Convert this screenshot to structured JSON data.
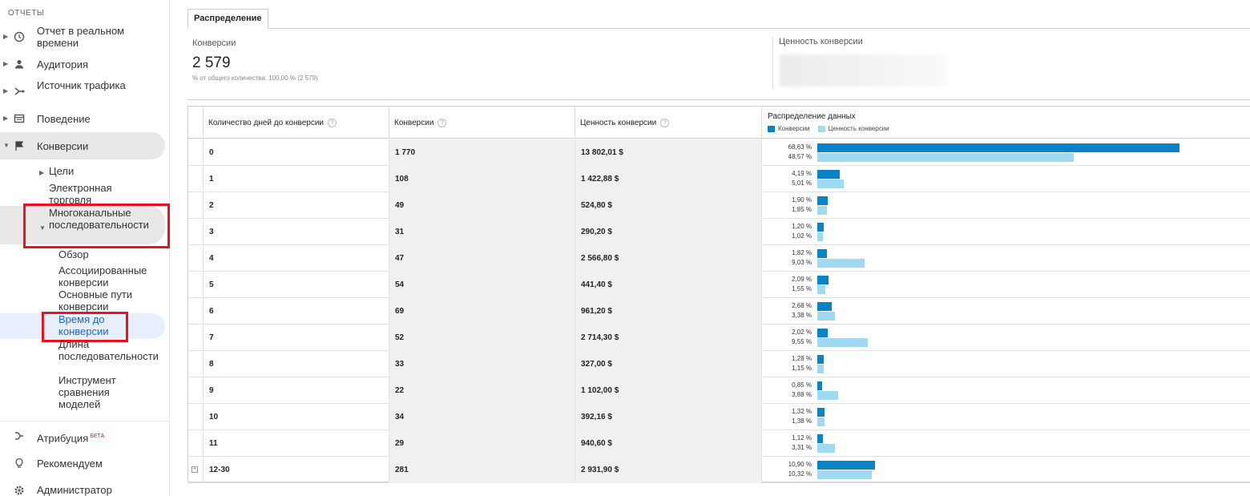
{
  "sidebar": {
    "section_title": "ОТЧЕТЫ",
    "top_items": [
      {
        "label": "Отчет в реальном времени",
        "icon": "clock-icon"
      },
      {
        "label": "Аудитория",
        "icon": "person-icon"
      },
      {
        "label": "Источник трафика",
        "icon": "source-icon"
      },
      {
        "label": "Поведение",
        "icon": "behavior-icon"
      },
      {
        "label": "Конверсии",
        "icon": "flag-icon"
      }
    ],
    "conversion_sub": [
      "Цели",
      "Электронная торговля",
      "Многоканальные последовательности"
    ],
    "mcf_sub": [
      "Обзор",
      "Ассоциированные конверсии",
      "Основные пути конверсии",
      "Время до конверсии",
      "Длина последовательности",
      "Инструмент сравнения моделей"
    ],
    "bottom_items": [
      {
        "label": "Атрибуция",
        "badge": "БЕТА",
        "icon": "attribution-icon"
      },
      {
        "label": "Рекомендуем",
        "icon": "lightbulb-icon"
      },
      {
        "label": "Администратор",
        "icon": "gear-icon"
      }
    ]
  },
  "tab": "Распределение",
  "summary": {
    "label": "Конверсии",
    "value": "2 579",
    "sub": "% от общего количества: 100,00 % (2 579)",
    "value_label": "Ценность конверсии"
  },
  "table": {
    "headers": [
      "Количество дней до конверсии",
      "Конверсии",
      "Ценность конверсии"
    ],
    "dist_title": "Распределение данных",
    "legend": [
      {
        "name": "Конверсии",
        "color": "#0a82c8"
      },
      {
        "name": "Ценность конверсии",
        "color": "#9fdaf2"
      }
    ],
    "rows": [
      {
        "days": "0",
        "conv": "1 770",
        "value": "13 802,01 $",
        "pc": "68,63 %",
        "pv": "48,57 %",
        "fc": 68.63,
        "fv": 48.57
      },
      {
        "days": "1",
        "conv": "108",
        "value": "1 422,88 $",
        "pc": "4,19 %",
        "pv": "5,01 %",
        "fc": 4.19,
        "fv": 5.01
      },
      {
        "days": "2",
        "conv": "49",
        "value": "524,80 $",
        "pc": "1,90 %",
        "pv": "1,85 %",
        "fc": 1.9,
        "fv": 1.85
      },
      {
        "days": "3",
        "conv": "31",
        "value": "290,20 $",
        "pc": "1,20 %",
        "pv": "1,02 %",
        "fc": 1.2,
        "fv": 1.02
      },
      {
        "days": "4",
        "conv": "47",
        "value": "2 566,80 $",
        "pc": "1,82 %",
        "pv": "9,03 %",
        "fc": 1.82,
        "fv": 9.03
      },
      {
        "days": "5",
        "conv": "54",
        "value": "441,40 $",
        "pc": "2,09 %",
        "pv": "1,55 %",
        "fc": 2.09,
        "fv": 1.55
      },
      {
        "days": "6",
        "conv": "69",
        "value": "961,20 $",
        "pc": "2,68 %",
        "pv": "3,38 %",
        "fc": 2.68,
        "fv": 3.38
      },
      {
        "days": "7",
        "conv": "52",
        "value": "2 714,30 $",
        "pc": "2,02 %",
        "pv": "9,55 %",
        "fc": 2.02,
        "fv": 9.55
      },
      {
        "days": "8",
        "conv": "33",
        "value": "327,00 $",
        "pc": "1,28 %",
        "pv": "1,15 %",
        "fc": 1.28,
        "fv": 1.15
      },
      {
        "days": "9",
        "conv": "22",
        "value": "1 102,00 $",
        "pc": "0,85 %",
        "pv": "3,88 %",
        "fc": 0.85,
        "fv": 3.88
      },
      {
        "days": "10",
        "conv": "34",
        "value": "392,16 $",
        "pc": "1,32 %",
        "pv": "1,38 %",
        "fc": 1.32,
        "fv": 1.38
      },
      {
        "days": "11",
        "conv": "29",
        "value": "940,60 $",
        "pc": "1,12 %",
        "pv": "3,31 %",
        "fc": 1.12,
        "fv": 3.31
      },
      {
        "days": "12-30",
        "conv": "281",
        "value": "2 931,90 $",
        "pc": "10,90 %",
        "pv": "10,32 %",
        "fc": 10.9,
        "fv": 10.32,
        "expandable": true
      }
    ]
  }
}
